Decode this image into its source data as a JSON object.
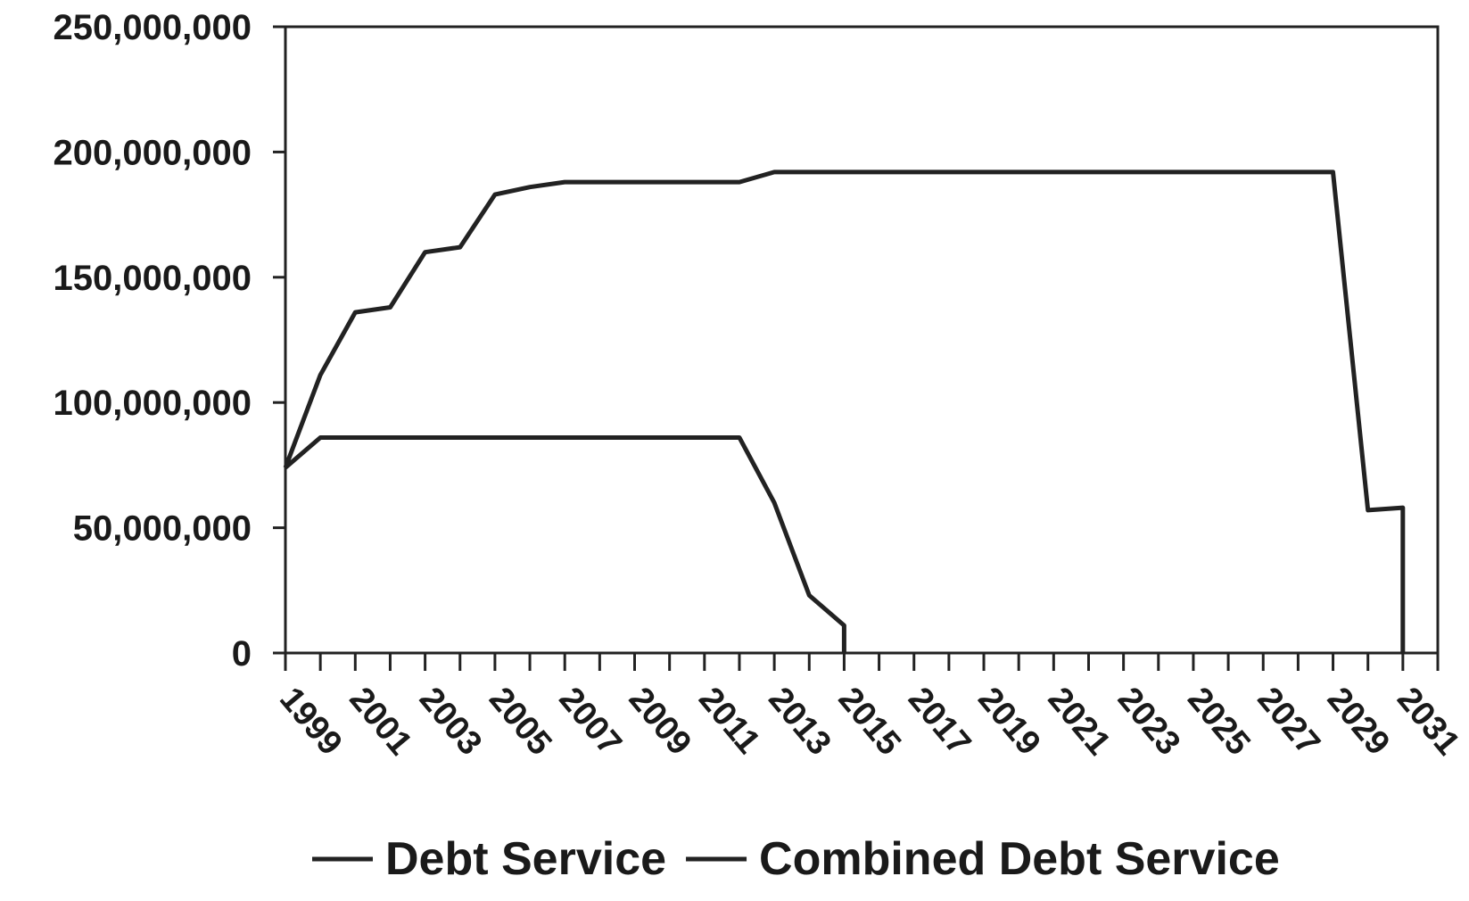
{
  "chart_data": {
    "type": "line",
    "title": "",
    "xlabel": "",
    "ylabel": "",
    "x": [
      1999,
      2000,
      2001,
      2002,
      2003,
      2004,
      2005,
      2006,
      2007,
      2008,
      2009,
      2010,
      2011,
      2012,
      2013,
      2014,
      2015,
      2016,
      2017,
      2018,
      2019,
      2020,
      2021,
      2022,
      2023,
      2024,
      2025,
      2026,
      2027,
      2028,
      2029,
      2030,
      2031
    ],
    "x_tick_labels": [
      "1999",
      "2001",
      "2003",
      "2005",
      "2007",
      "2009",
      "2011",
      "2013",
      "2015",
      "2017",
      "2019",
      "2021",
      "2023",
      "2025",
      "2027",
      "2029",
      "2031"
    ],
    "xlim": [
      1999,
      2032
    ],
    "ylim": [
      0,
      250000000
    ],
    "y_ticks": [
      0,
      50000000,
      100000000,
      150000000,
      200000000,
      250000000
    ],
    "y_tick_labels": [
      "0",
      "50,000,000",
      "100,000,000",
      "150,000,000",
      "200,000,000",
      "250,000,000"
    ],
    "grid": false,
    "legend_position": "bottom",
    "series": [
      {
        "name": "Debt Service",
        "color": "#222222",
        "x": [
          1999,
          2000,
          2001,
          2002,
          2003,
          2004,
          2005,
          2006,
          2007,
          2008,
          2009,
          2010,
          2011,
          2012,
          2013,
          2014,
          2015,
          2015
        ],
        "values": [
          74000000,
          86000000,
          86000000,
          86000000,
          86000000,
          86000000,
          86000000,
          86000000,
          86000000,
          86000000,
          86000000,
          86000000,
          86000000,
          86000000,
          60000000,
          23000000,
          11000000,
          0
        ]
      },
      {
        "name": "Combined Debt Service",
        "color": "#222222",
        "x": [
          1999,
          2000,
          2001,
          2002,
          2003,
          2004,
          2005,
          2006,
          2007,
          2008,
          2009,
          2010,
          2011,
          2012,
          2013,
          2014,
          2015,
          2016,
          2017,
          2018,
          2019,
          2020,
          2021,
          2022,
          2023,
          2024,
          2025,
          2026,
          2027,
          2028,
          2029,
          2030,
          2031,
          2031
        ],
        "values": [
          74000000,
          111000000,
          136000000,
          138000000,
          160000000,
          162000000,
          183000000,
          186000000,
          188000000,
          188000000,
          188000000,
          188000000,
          188000000,
          188000000,
          192000000,
          192000000,
          192000000,
          192000000,
          192000000,
          192000000,
          192000000,
          192000000,
          192000000,
          192000000,
          192000000,
          192000000,
          192000000,
          192000000,
          192000000,
          192000000,
          192000000,
          57000000,
          58000000,
          0
        ]
      }
    ]
  }
}
